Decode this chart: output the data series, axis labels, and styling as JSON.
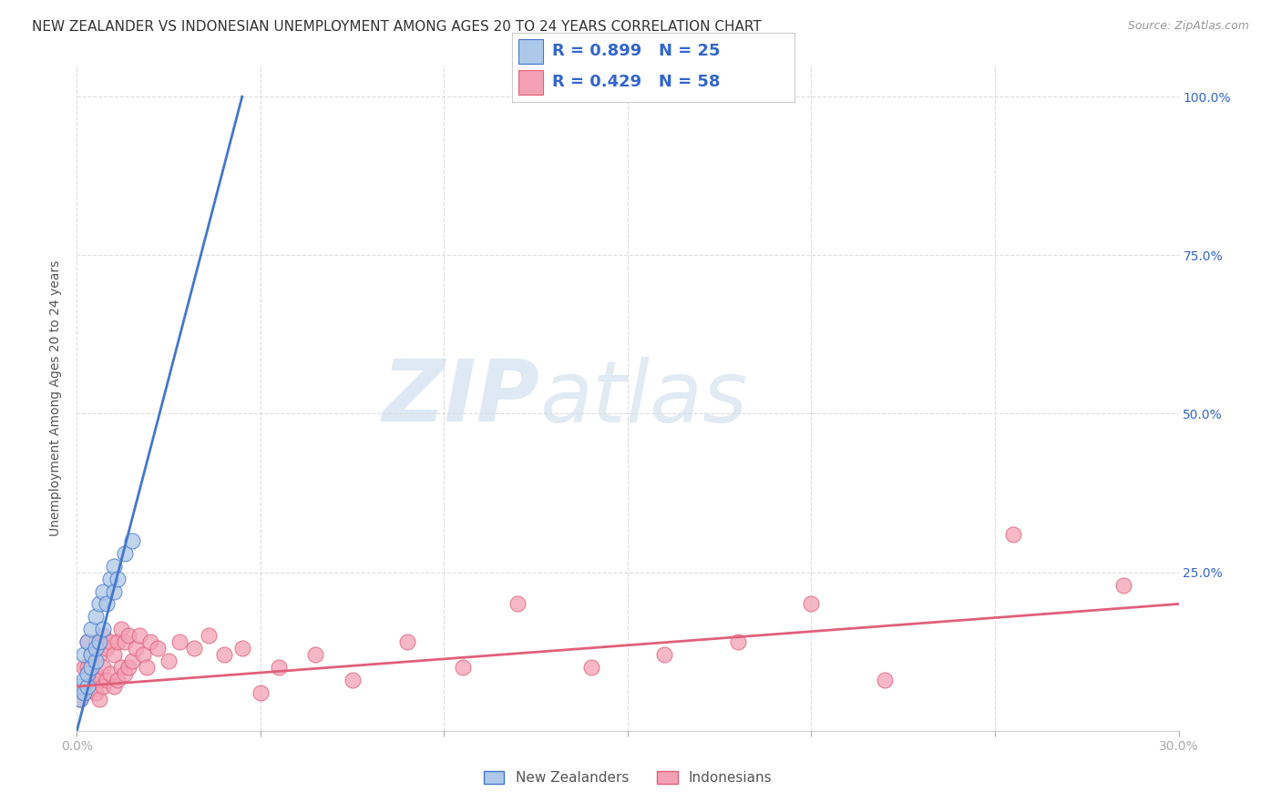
{
  "title": "NEW ZEALANDER VS INDONESIAN UNEMPLOYMENT AMONG AGES 20 TO 24 YEARS CORRELATION CHART",
  "source": "Source: ZipAtlas.com",
  "ylabel": "Unemployment Among Ages 20 to 24 years",
  "xlim": [
    0.0,
    0.3
  ],
  "ylim": [
    0.0,
    1.05
  ],
  "x_ticks": [
    0.0,
    0.05,
    0.1,
    0.15,
    0.2,
    0.25,
    0.3
  ],
  "x_tick_labels": [
    "0.0%",
    "",
    "",
    "",
    "",
    "",
    "30.0%"
  ],
  "y_ticks": [
    0.0,
    0.25,
    0.5,
    0.75,
    1.0
  ],
  "y_tick_labels": [
    "",
    "25.0%",
    "50.0%",
    "75.0%",
    "100.0%"
  ],
  "nz_color": "#adc8e8",
  "nz_line_color": "#4477cc",
  "indo_color": "#f4a0b5",
  "indo_line_color": "#e0607a",
  "R_nz": 0.899,
  "N_nz": 25,
  "R_indo": 0.429,
  "N_indo": 58,
  "nz_x": [
    0.001,
    0.001,
    0.002,
    0.002,
    0.002,
    0.003,
    0.003,
    0.003,
    0.004,
    0.004,
    0.004,
    0.005,
    0.005,
    0.005,
    0.006,
    0.006,
    0.007,
    0.007,
    0.008,
    0.009,
    0.01,
    0.01,
    0.011,
    0.013,
    0.015
  ],
  "nz_y": [
    0.05,
    0.07,
    0.06,
    0.08,
    0.12,
    0.07,
    0.09,
    0.14,
    0.1,
    0.12,
    0.16,
    0.11,
    0.13,
    0.18,
    0.14,
    0.2,
    0.16,
    0.22,
    0.2,
    0.24,
    0.22,
    0.26,
    0.24,
    0.28,
    0.3
  ],
  "nz_line_x0": 0.0,
  "nz_line_x1": 0.045,
  "nz_line_y0": 0.0,
  "nz_line_y1": 1.0,
  "indo_x": [
    0.001,
    0.002,
    0.002,
    0.003,
    0.003,
    0.003,
    0.004,
    0.004,
    0.005,
    0.005,
    0.005,
    0.006,
    0.006,
    0.006,
    0.007,
    0.007,
    0.007,
    0.008,
    0.008,
    0.009,
    0.009,
    0.01,
    0.01,
    0.011,
    0.011,
    0.012,
    0.012,
    0.013,
    0.013,
    0.014,
    0.014,
    0.015,
    0.016,
    0.017,
    0.018,
    0.019,
    0.02,
    0.022,
    0.025,
    0.028,
    0.032,
    0.036,
    0.04,
    0.045,
    0.05,
    0.055,
    0.065,
    0.075,
    0.09,
    0.105,
    0.12,
    0.14,
    0.16,
    0.18,
    0.2,
    0.22,
    0.255,
    0.285
  ],
  "indo_y": [
    0.05,
    0.06,
    0.1,
    0.07,
    0.1,
    0.14,
    0.08,
    0.12,
    0.06,
    0.09,
    0.14,
    0.05,
    0.08,
    0.12,
    0.07,
    0.1,
    0.15,
    0.08,
    0.13,
    0.09,
    0.14,
    0.07,
    0.12,
    0.08,
    0.14,
    0.1,
    0.16,
    0.09,
    0.14,
    0.1,
    0.15,
    0.11,
    0.13,
    0.15,
    0.12,
    0.1,
    0.14,
    0.13,
    0.11,
    0.14,
    0.13,
    0.15,
    0.12,
    0.13,
    0.06,
    0.1,
    0.12,
    0.08,
    0.14,
    0.1,
    0.2,
    0.1,
    0.12,
    0.14,
    0.2,
    0.08,
    0.31,
    0.23
  ],
  "indo_line_x0": 0.0,
  "indo_line_x1": 0.3,
  "indo_line_y0": 0.07,
  "indo_line_y1": 0.2,
  "watermark_zip": "ZIP",
  "watermark_atlas": "atlas",
  "background_color": "#ffffff",
  "grid_color": "#dddddd",
  "title_fontsize": 11,
  "axis_label_fontsize": 10,
  "tick_fontsize": 10,
  "legend_fontsize": 11
}
